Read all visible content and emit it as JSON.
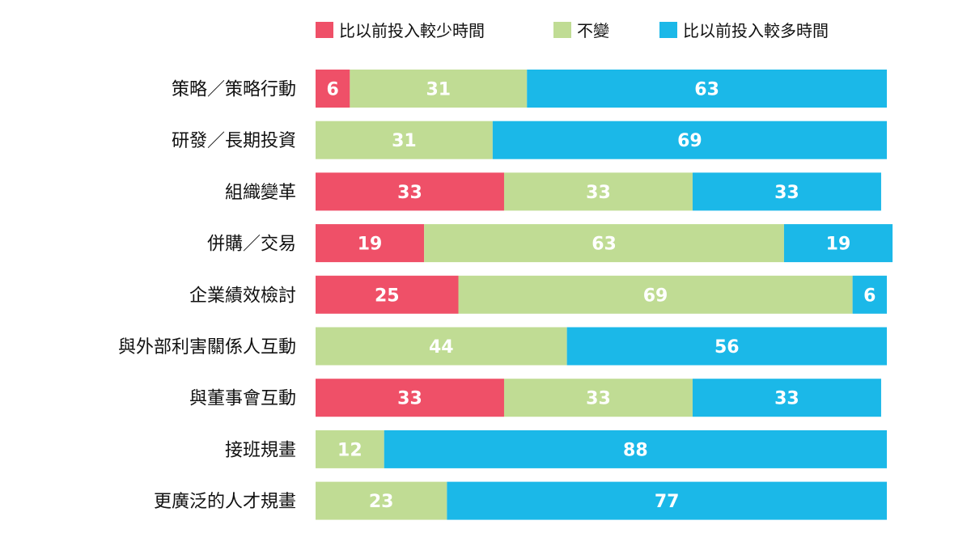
{
  "chart_data": {
    "type": "bar",
    "orientation": "horizontal",
    "stacked": true,
    "title": "",
    "xlabel": "",
    "ylabel": "",
    "xlim": [
      0,
      100
    ],
    "grid": false,
    "legend_position": "top",
    "categories": [
      "策略／策略行動",
      "研發／長期投資",
      "組織變革",
      "併購／交易",
      "企業績效檢討",
      "與外部利害關係人互動",
      "與董事會互動",
      "接班規畫",
      "更廣泛的人才規畫"
    ],
    "series": [
      {
        "name": "比以前投入較少時間",
        "color": "#ef5068",
        "values": [
          6,
          0,
          33,
          19,
          25,
          0,
          33,
          0,
          0
        ]
      },
      {
        "name": "不變",
        "color": "#c0dc94",
        "values": [
          31,
          31,
          33,
          63,
          69,
          44,
          33,
          12,
          23
        ]
      },
      {
        "name": "比以前投入較多時間",
        "color": "#1bb8e8",
        "values": [
          63,
          69,
          33,
          19,
          6,
          56,
          33,
          88,
          77
        ]
      }
    ]
  }
}
